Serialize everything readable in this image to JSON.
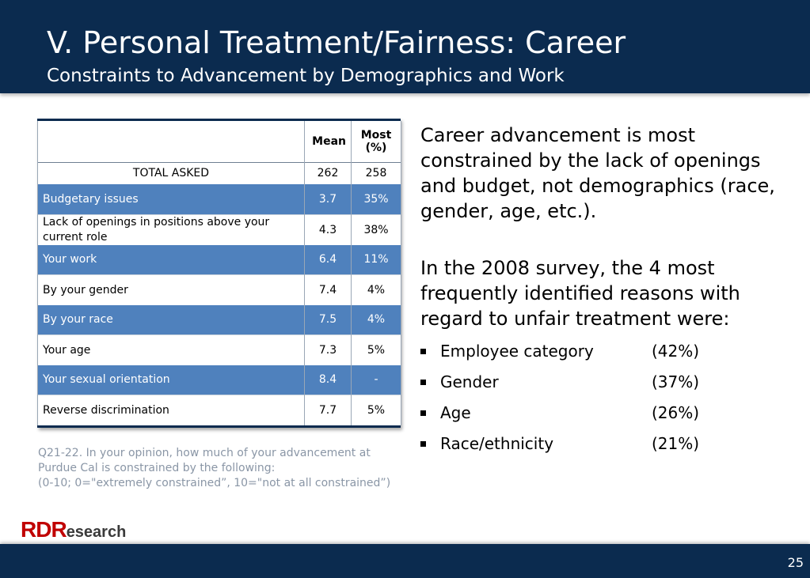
{
  "header": {
    "title": "V. Personal Treatment/Fairness: Career",
    "subtitle": "Constraints to Advancement by Demographics and Work"
  },
  "table": {
    "headers": {
      "label": "",
      "mean": "Mean",
      "most": "Most (%)"
    },
    "total": {
      "label": "TOTAL ASKED",
      "mean": "262",
      "most": "258"
    },
    "rows": [
      {
        "label": "Budgetary issues",
        "mean": "3.7",
        "most": "35%"
      },
      {
        "label": "Lack of openings in positions above your current role",
        "mean": "4.3",
        "most": "38%"
      },
      {
        "label": "Your work",
        "mean": "6.4",
        "most": "11%"
      },
      {
        "label": "By your gender",
        "mean": "7.4",
        "most": "4%"
      },
      {
        "label": "By your race",
        "mean": "7.5",
        "most": "4%"
      },
      {
        "label": "Your age",
        "mean": "7.3",
        "most": "5%"
      },
      {
        "label": "Your sexual orientation",
        "mean": "8.4",
        "most": "-"
      },
      {
        "label": "Reverse discrimination",
        "mean": "7.7",
        "most": "5%"
      }
    ]
  },
  "footnote": {
    "line1": "Q21-22.  In your opinion, how much of your advancement at",
    "line2": "Purdue Cal is constrained by the following:",
    "line3": "(0-10; 0=\"extremely constrained”, 10=\"not at all constrained”)"
  },
  "logo": {
    "prefix": "RD",
    "suffix": "esearch",
    "middle": "R"
  },
  "right": {
    "para1": "Career advancement is most constrained by the lack of openings and budget, not demographics (race, gender, age, etc.).",
    "para2": "In the 2008 survey, the 4 most frequently identified reasons with regard to unfair treatment were:",
    "reasons": [
      {
        "label": "Employee category",
        "pct": "(42%)"
      },
      {
        "label": "Gender",
        "pct": "(37%)"
      },
      {
        "label": "Age",
        "pct": "(26%)"
      },
      {
        "label": "Race/ethnicity",
        "pct": "(21%)"
      }
    ]
  },
  "footer": {
    "page_number": "25"
  },
  "colors": {
    "navy": "#0b2b4f",
    "row_blue": "#4f81bd",
    "logo_red": "#c00000"
  }
}
